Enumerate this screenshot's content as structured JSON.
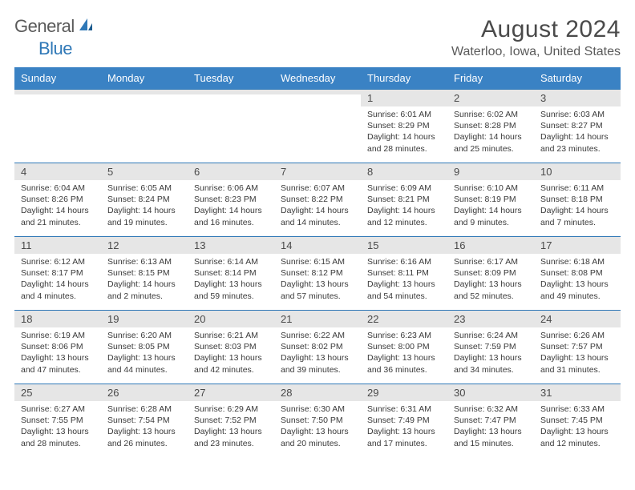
{
  "logo": {
    "text1": "General",
    "text2": "Blue"
  },
  "header": {
    "month_title": "August 2024",
    "location": "Waterloo, Iowa, United States"
  },
  "colors": {
    "header_bg": "#3a82c4",
    "accent": "#2f78b7",
    "alt_row_bg": "#e6e6e6",
    "text": "#4a4a4a"
  },
  "daynames": [
    "Sunday",
    "Monday",
    "Tuesday",
    "Wednesday",
    "Thursday",
    "Friday",
    "Saturday"
  ],
  "weeks": [
    [
      {
        "num": "",
        "lines": [
          "",
          "",
          "",
          ""
        ]
      },
      {
        "num": "",
        "lines": [
          "",
          "",
          "",
          ""
        ]
      },
      {
        "num": "",
        "lines": [
          "",
          "",
          "",
          ""
        ]
      },
      {
        "num": "",
        "lines": [
          "",
          "",
          "",
          ""
        ]
      },
      {
        "num": "1",
        "lines": [
          "Sunrise: 6:01 AM",
          "Sunset: 8:29 PM",
          "Daylight: 14 hours",
          "and 28 minutes."
        ]
      },
      {
        "num": "2",
        "lines": [
          "Sunrise: 6:02 AM",
          "Sunset: 8:28 PM",
          "Daylight: 14 hours",
          "and 25 minutes."
        ]
      },
      {
        "num": "3",
        "lines": [
          "Sunrise: 6:03 AM",
          "Sunset: 8:27 PM",
          "Daylight: 14 hours",
          "and 23 minutes."
        ]
      }
    ],
    [
      {
        "num": "4",
        "lines": [
          "Sunrise: 6:04 AM",
          "Sunset: 8:26 PM",
          "Daylight: 14 hours",
          "and 21 minutes."
        ]
      },
      {
        "num": "5",
        "lines": [
          "Sunrise: 6:05 AM",
          "Sunset: 8:24 PM",
          "Daylight: 14 hours",
          "and 19 minutes."
        ]
      },
      {
        "num": "6",
        "lines": [
          "Sunrise: 6:06 AM",
          "Sunset: 8:23 PM",
          "Daylight: 14 hours",
          "and 16 minutes."
        ]
      },
      {
        "num": "7",
        "lines": [
          "Sunrise: 6:07 AM",
          "Sunset: 8:22 PM",
          "Daylight: 14 hours",
          "and 14 minutes."
        ]
      },
      {
        "num": "8",
        "lines": [
          "Sunrise: 6:09 AM",
          "Sunset: 8:21 PM",
          "Daylight: 14 hours",
          "and 12 minutes."
        ]
      },
      {
        "num": "9",
        "lines": [
          "Sunrise: 6:10 AM",
          "Sunset: 8:19 PM",
          "Daylight: 14 hours",
          "and 9 minutes."
        ]
      },
      {
        "num": "10",
        "lines": [
          "Sunrise: 6:11 AM",
          "Sunset: 8:18 PM",
          "Daylight: 14 hours",
          "and 7 minutes."
        ]
      }
    ],
    [
      {
        "num": "11",
        "lines": [
          "Sunrise: 6:12 AM",
          "Sunset: 8:17 PM",
          "Daylight: 14 hours",
          "and 4 minutes."
        ]
      },
      {
        "num": "12",
        "lines": [
          "Sunrise: 6:13 AM",
          "Sunset: 8:15 PM",
          "Daylight: 14 hours",
          "and 2 minutes."
        ]
      },
      {
        "num": "13",
        "lines": [
          "Sunrise: 6:14 AM",
          "Sunset: 8:14 PM",
          "Daylight: 13 hours",
          "and 59 minutes."
        ]
      },
      {
        "num": "14",
        "lines": [
          "Sunrise: 6:15 AM",
          "Sunset: 8:12 PM",
          "Daylight: 13 hours",
          "and 57 minutes."
        ]
      },
      {
        "num": "15",
        "lines": [
          "Sunrise: 6:16 AM",
          "Sunset: 8:11 PM",
          "Daylight: 13 hours",
          "and 54 minutes."
        ]
      },
      {
        "num": "16",
        "lines": [
          "Sunrise: 6:17 AM",
          "Sunset: 8:09 PM",
          "Daylight: 13 hours",
          "and 52 minutes."
        ]
      },
      {
        "num": "17",
        "lines": [
          "Sunrise: 6:18 AM",
          "Sunset: 8:08 PM",
          "Daylight: 13 hours",
          "and 49 minutes."
        ]
      }
    ],
    [
      {
        "num": "18",
        "lines": [
          "Sunrise: 6:19 AM",
          "Sunset: 8:06 PM",
          "Daylight: 13 hours",
          "and 47 minutes."
        ]
      },
      {
        "num": "19",
        "lines": [
          "Sunrise: 6:20 AM",
          "Sunset: 8:05 PM",
          "Daylight: 13 hours",
          "and 44 minutes."
        ]
      },
      {
        "num": "20",
        "lines": [
          "Sunrise: 6:21 AM",
          "Sunset: 8:03 PM",
          "Daylight: 13 hours",
          "and 42 minutes."
        ]
      },
      {
        "num": "21",
        "lines": [
          "Sunrise: 6:22 AM",
          "Sunset: 8:02 PM",
          "Daylight: 13 hours",
          "and 39 minutes."
        ]
      },
      {
        "num": "22",
        "lines": [
          "Sunrise: 6:23 AM",
          "Sunset: 8:00 PM",
          "Daylight: 13 hours",
          "and 36 minutes."
        ]
      },
      {
        "num": "23",
        "lines": [
          "Sunrise: 6:24 AM",
          "Sunset: 7:59 PM",
          "Daylight: 13 hours",
          "and 34 minutes."
        ]
      },
      {
        "num": "24",
        "lines": [
          "Sunrise: 6:26 AM",
          "Sunset: 7:57 PM",
          "Daylight: 13 hours",
          "and 31 minutes."
        ]
      }
    ],
    [
      {
        "num": "25",
        "lines": [
          "Sunrise: 6:27 AM",
          "Sunset: 7:55 PM",
          "Daylight: 13 hours",
          "and 28 minutes."
        ]
      },
      {
        "num": "26",
        "lines": [
          "Sunrise: 6:28 AM",
          "Sunset: 7:54 PM",
          "Daylight: 13 hours",
          "and 26 minutes."
        ]
      },
      {
        "num": "27",
        "lines": [
          "Sunrise: 6:29 AM",
          "Sunset: 7:52 PM",
          "Daylight: 13 hours",
          "and 23 minutes."
        ]
      },
      {
        "num": "28",
        "lines": [
          "Sunrise: 6:30 AM",
          "Sunset: 7:50 PM",
          "Daylight: 13 hours",
          "and 20 minutes."
        ]
      },
      {
        "num": "29",
        "lines": [
          "Sunrise: 6:31 AM",
          "Sunset: 7:49 PM",
          "Daylight: 13 hours",
          "and 17 minutes."
        ]
      },
      {
        "num": "30",
        "lines": [
          "Sunrise: 6:32 AM",
          "Sunset: 7:47 PM",
          "Daylight: 13 hours",
          "and 15 minutes."
        ]
      },
      {
        "num": "31",
        "lines": [
          "Sunrise: 6:33 AM",
          "Sunset: 7:45 PM",
          "Daylight: 13 hours",
          "and 12 minutes."
        ]
      }
    ]
  ]
}
